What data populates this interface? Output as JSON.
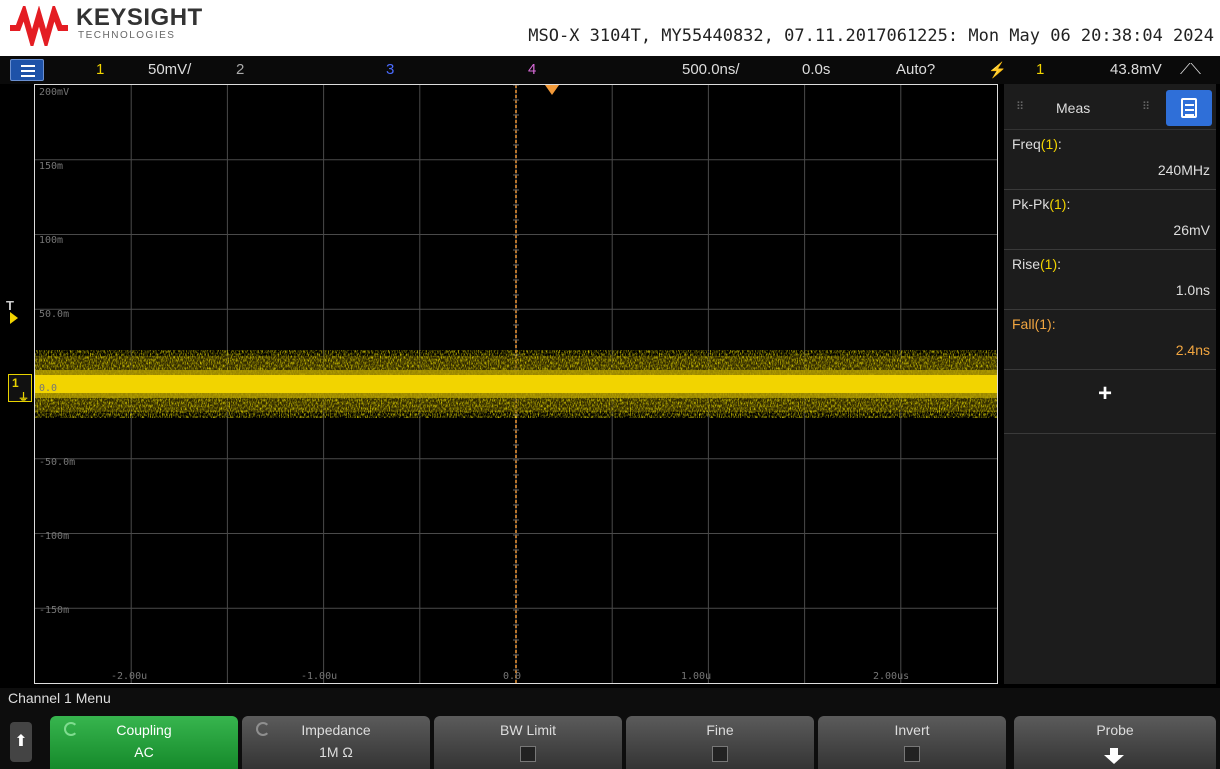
{
  "header": {
    "brand": "KEYSIGHT",
    "brand_sub": "TECHNOLOGIES",
    "instrument_info": "MSO-X 3104T, MY55440832, 07.11.2017061225: Mon May 06 20:38:04 2024"
  },
  "statusbar": {
    "ch1_num": "1",
    "ch1_scale": "50mV/",
    "ch2_num": "2",
    "ch3_num": "3",
    "ch4_num": "4",
    "timebase": "500.0ns/",
    "delay": "0.0s",
    "trigger_mode": "Auto?",
    "trigger_source": "1",
    "trigger_level": "43.8mV",
    "colors": {
      "ch1": "#f2d400",
      "ch2": "#2fbf4f",
      "ch3": "#4a6bff",
      "ch4": "#d86ad8",
      "trigger": "#f29a3a"
    }
  },
  "plot": {
    "y_labels": [
      "200mV",
      "150m",
      "100m",
      "50.0m",
      "0.0",
      "-50.0m",
      "-100m",
      "-150m"
    ],
    "x_labels": [
      "-2.00u",
      "-1.00u",
      "0.0",
      "1.00u",
      "2.00us"
    ],
    "trigger_marker": "T",
    "ch1_ground_label": "1",
    "trace_color": "#f2d400"
  },
  "side_panel": {
    "title": "Meas",
    "measurements": [
      {
        "name": "Freq",
        "src": "(1)",
        "suffix": ":",
        "value": "240MHz",
        "highlight": false
      },
      {
        "name": "Pk-Pk",
        "src": "(1)",
        "suffix": ":",
        "value": "26mV",
        "highlight": false
      },
      {
        "name": "Rise",
        "src": "(1)",
        "suffix": ":",
        "value": "1.0ns",
        "highlight": false
      },
      {
        "name": "Fall",
        "src": "(1)",
        "suffix": ":",
        "value": "2.4ns",
        "highlight": true
      }
    ],
    "add_label": "+"
  },
  "menu": {
    "title": "Channel 1 Menu",
    "softkeys": [
      {
        "label": "Coupling",
        "value": "AC"
      },
      {
        "label": "Impedance",
        "value": "1M Ω"
      },
      {
        "label": "BW Limit"
      },
      {
        "label": "Fine"
      },
      {
        "label": "Invert"
      },
      {
        "label": "Probe"
      }
    ]
  }
}
